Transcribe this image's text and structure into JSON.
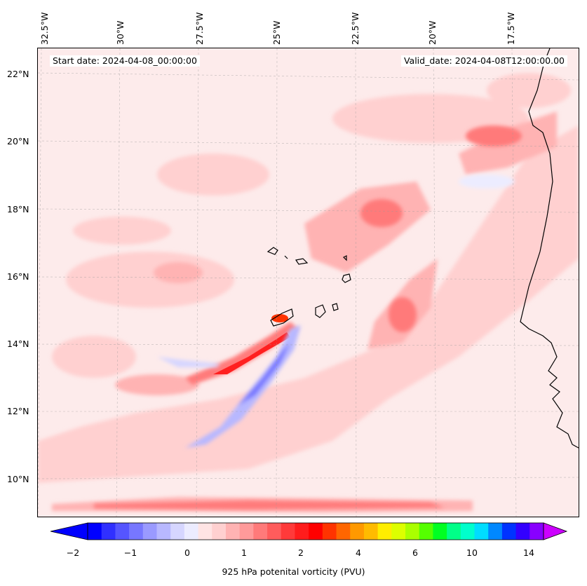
{
  "map": {
    "start_date": "Start date: 2024-04-08_00:00:00",
    "valid_date": "Valid_date: 2024-04-08T12:00:00.00",
    "longitude_labels": [
      "32.5°W",
      "30°W",
      "27.5°W",
      "25°W",
      "22.5°W",
      "20°W",
      "17.5°W"
    ],
    "latitude_labels": [
      "22°N",
      "20°N",
      "18°N",
      "16°N",
      "14°N",
      "12°N",
      "10°N"
    ],
    "field": "925 hPa potential vorticity",
    "background_color": "#fdebeb",
    "coastline_color": "#000000"
  },
  "colorbar": {
    "label": "925 hPa potenital vorticity (PVU)",
    "tick_labels": [
      "−2",
      "−1",
      "0",
      "1",
      "2",
      "4",
      "6",
      "10",
      "14"
    ],
    "colors": [
      "#0000ff",
      "#3030ff",
      "#5555ff",
      "#7777ff",
      "#9a9aff",
      "#b8b8ff",
      "#d6d6ff",
      "#ececff",
      "#ffe4e4",
      "#ffd0d0",
      "#ffb3b3",
      "#ff9a9a",
      "#ff7a7a",
      "#ff5c5c",
      "#ff3a3a",
      "#ff1c1c",
      "#ff0000",
      "#ff3300",
      "#ff6600",
      "#ff9900",
      "#ffbb00",
      "#ffee00",
      "#ddff00",
      "#aaff00",
      "#55ff00",
      "#00ff22",
      "#00ff88",
      "#00ffcc",
      "#00ddff",
      "#0088ff",
      "#0033ff",
      "#3300ff",
      "#8800ff"
    ],
    "under_color": "#0000ff",
    "over_color": "#cc00ff"
  }
}
